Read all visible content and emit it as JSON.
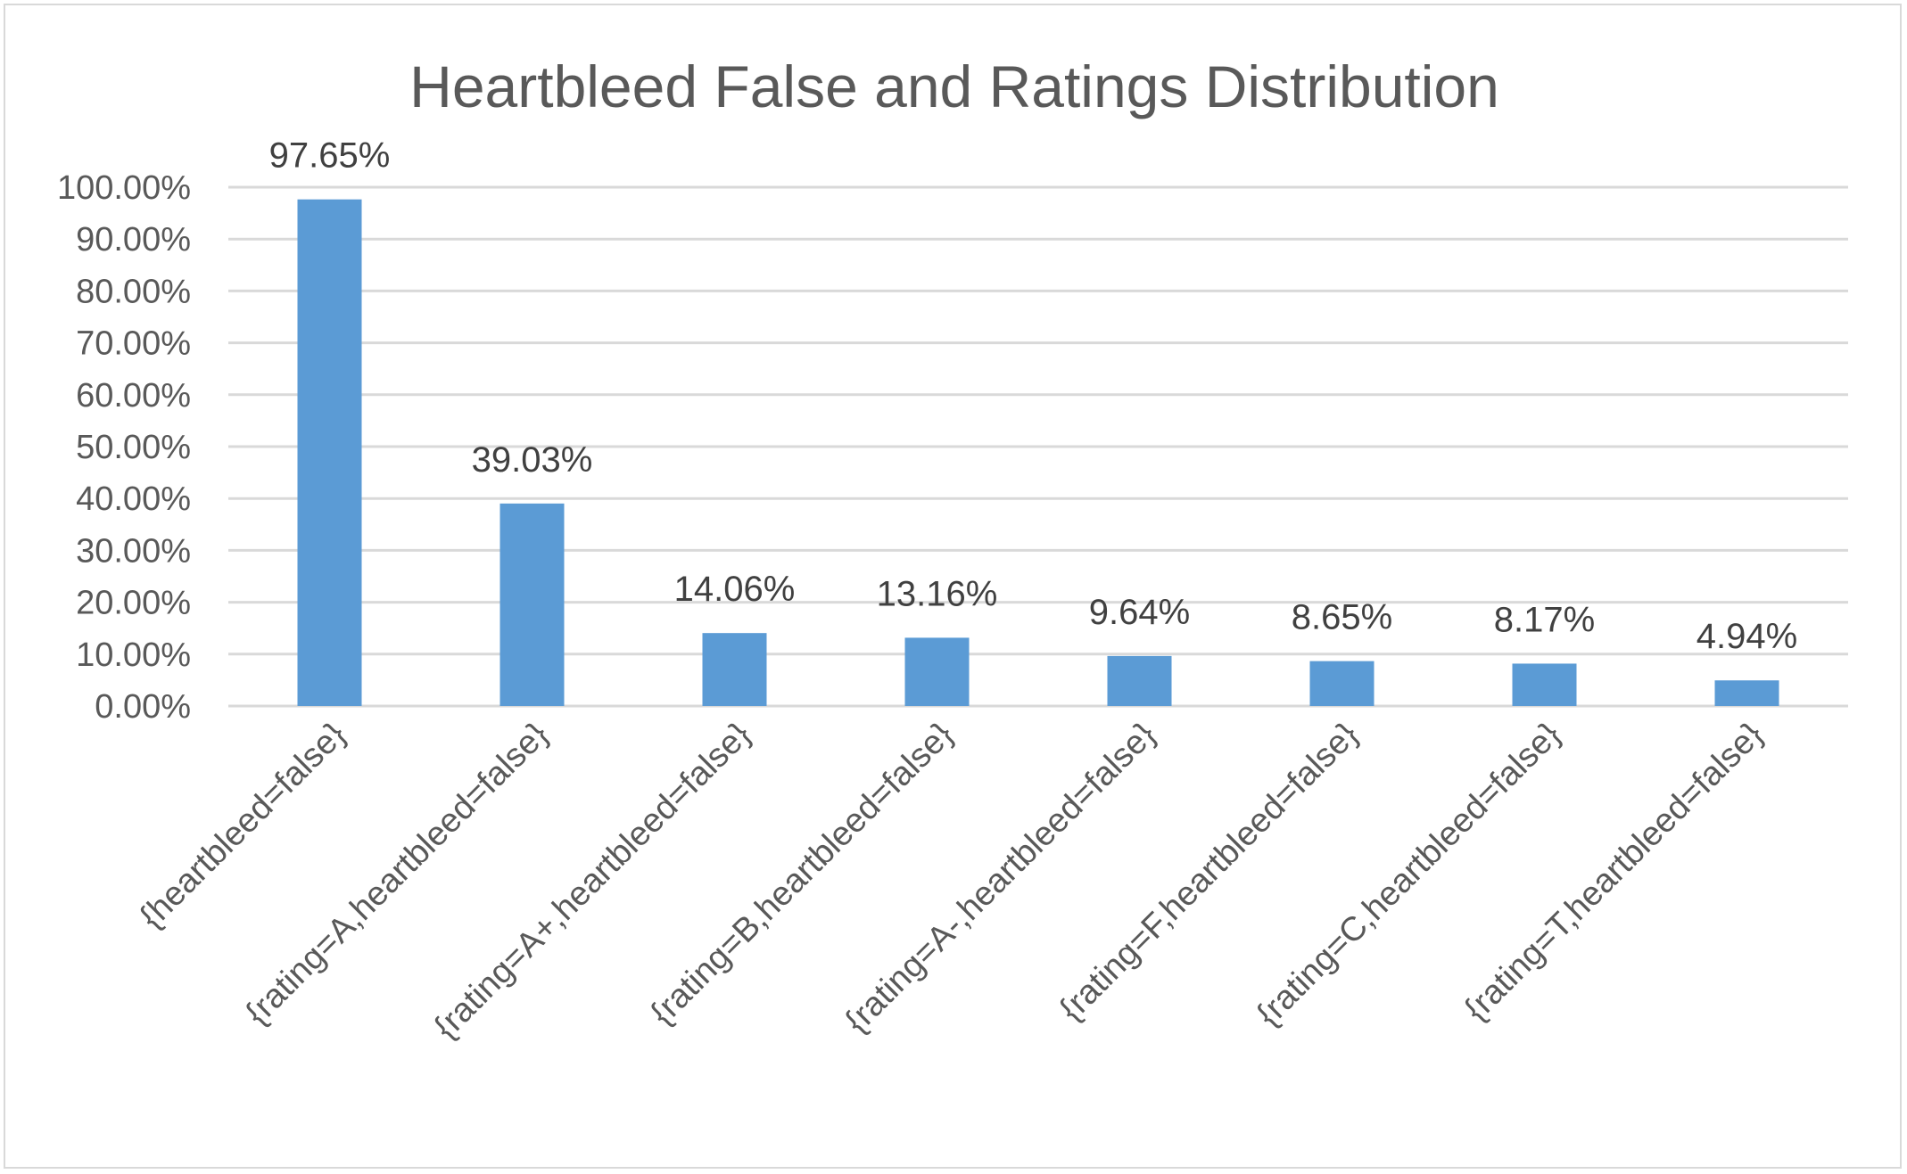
{
  "chart_data": {
    "type": "bar",
    "title": "Heartbleed False and Ratings Distribution",
    "xlabel": "",
    "ylabel": "",
    "categories": [
      "{heartbleed=false}",
      "{rating=A,heartbleed=false}",
      "{rating=A+,heartbleed=false}",
      "{rating=B,heartbleed=false}",
      "{rating=A-,heartbleed=false}",
      "{rating=F,heartbleed=false}",
      "{rating=C,heartbleed=false}",
      "{rating=T,heartbleed=false}"
    ],
    "values": [
      97.65,
      39.03,
      14.06,
      13.16,
      9.64,
      8.65,
      8.17,
      4.94
    ],
    "data_labels": [
      "97.65%",
      "39.03%",
      "14.06%",
      "13.16%",
      "9.64%",
      "8.65%",
      "8.17%",
      "4.94%"
    ],
    "ylim": [
      0,
      100
    ],
    "yticks": [
      0,
      10,
      20,
      30,
      40,
      50,
      60,
      70,
      80,
      90,
      100
    ],
    "ytick_labels": [
      "0.00%",
      "10.00%",
      "20.00%",
      "30.00%",
      "40.00%",
      "50.00%",
      "60.00%",
      "70.00%",
      "80.00%",
      "90.00%",
      "100.00%"
    ],
    "grid": true,
    "legend": "none",
    "bar_color": "#5b9bd5",
    "grid_color": "#d9d9d9"
  }
}
